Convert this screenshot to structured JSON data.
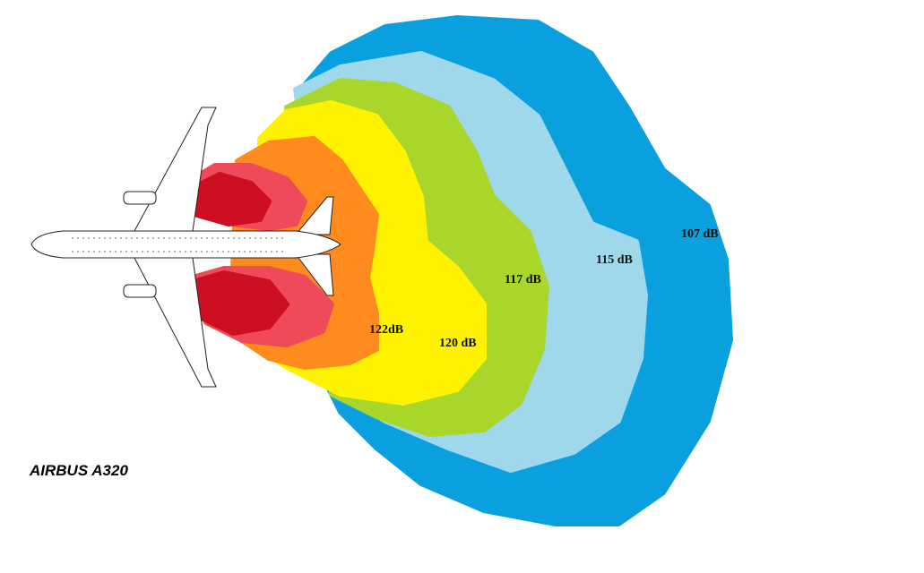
{
  "title": "AIRBUS A320",
  "contours": [
    {
      "label": "107 dB"
    },
    {
      "label": "115 dB"
    },
    {
      "label": "117 dB"
    },
    {
      "label": "120 dB"
    },
    {
      "label": "122dB"
    }
  ]
}
